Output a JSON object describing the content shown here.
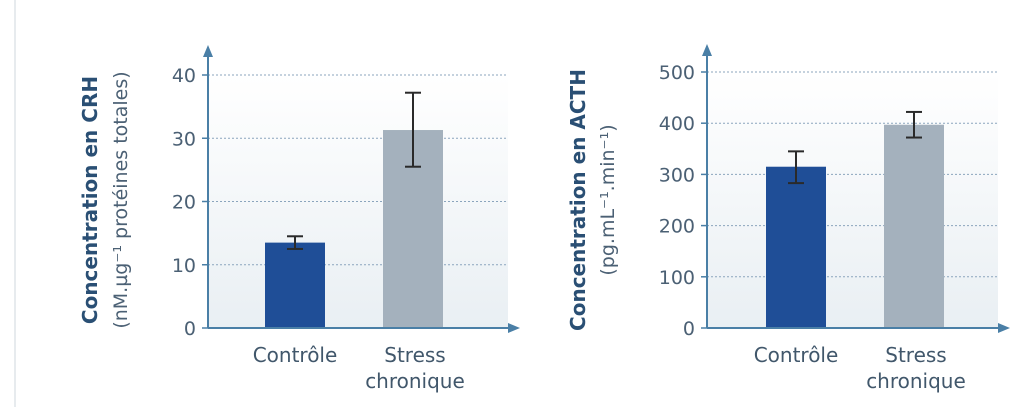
{
  "chart_data": [
    {
      "type": "bar",
      "categories": [
        "Contrôle",
        "Stress chronique"
      ],
      "category_lines": [
        [
          "Contrôle"
        ],
        [
          "Stress",
          "chronique"
        ]
      ],
      "values": [
        13.5,
        31.3
      ],
      "error_low": [
        12.5,
        25.5
      ],
      "error_high": [
        14.5,
        37.2
      ],
      "bar_colors": [
        "#1f4e97",
        "#a4b1bd"
      ],
      "ylabel_line1": "Concentration en CRH",
      "ylabel_line2": "(nM.µg⁻¹ protéines totales)",
      "ylim": [
        0,
        40
      ],
      "yticks": [
        "0",
        "10",
        "20",
        "30",
        "40"
      ],
      "grid": true
    },
    {
      "type": "bar",
      "categories": [
        "Contrôle",
        "Stress chronique"
      ],
      "category_lines": [
        [
          "Contrôle"
        ],
        [
          "Stress",
          "chronique"
        ]
      ],
      "values": [
        315,
        397
      ],
      "error_low": [
        283,
        372
      ],
      "error_high": [
        345,
        422
      ],
      "bar_colors": [
        "#1f4e97",
        "#a4b1bd"
      ],
      "ylabel_line1": "Concentration en ACTH",
      "ylabel_line2": "(pg.mL⁻¹.min⁻¹)",
      "ylim": [
        0,
        500
      ],
      "yticks": [
        "0",
        "100",
        "200",
        "300",
        "400",
        "500"
      ],
      "grid": true
    }
  ],
  "colors": {
    "axis": "#4a7fa6",
    "grid": "#8ba5bd",
    "plot_bg_top": "#ffffff",
    "plot_bg_bottom": "#eaf0f3",
    "error_bar": "#2a2a2a"
  }
}
